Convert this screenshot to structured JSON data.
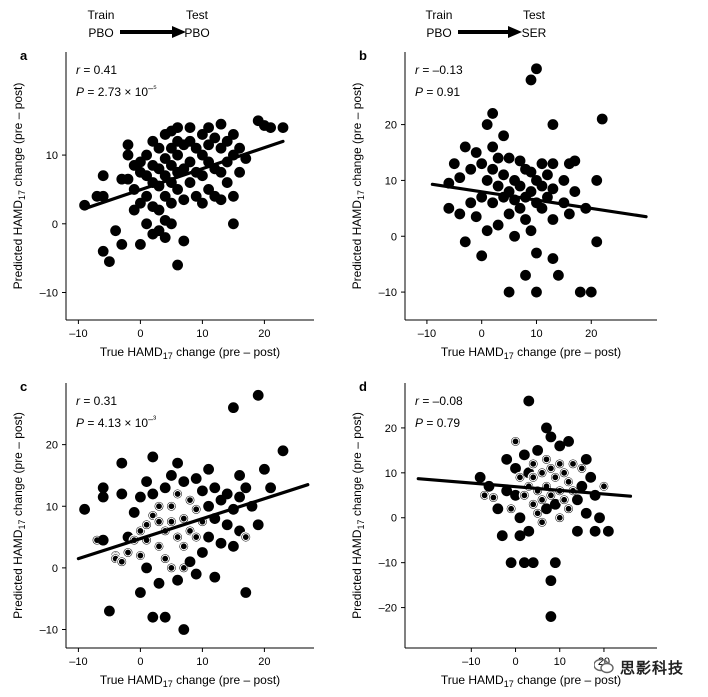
{
  "header": {
    "left": {
      "train_label": "Train",
      "train_value": "PBO",
      "test_label": "Test",
      "test_value": "PBO"
    },
    "right": {
      "train_label": "Train",
      "train_value": "PBO",
      "test_label": "Test",
      "test_value": "SER"
    }
  },
  "watermark": "思影科技",
  "chart_data": [
    {
      "id": "a",
      "type": "scatter",
      "title": "",
      "xlabel": "True HAMD17 change (pre – post)",
      "ylabel": "Predicted HAMD17 change (pre – post)",
      "xlim": [
        -12,
        28
      ],
      "ylim": [
        -14,
        25
      ],
      "xticks": [
        -10,
        0,
        10,
        20
      ],
      "yticks": [
        -10,
        0,
        10
      ],
      "stats": {
        "r": "r = 0.41",
        "p": "P = 2.73 × 10⁻⁵"
      },
      "regression": [
        [
          -9,
          2.2
        ],
        [
          23,
          12
        ]
      ],
      "marker": "filled",
      "points": [
        [
          -9,
          2.7
        ],
        [
          -7,
          4
        ],
        [
          -6,
          4
        ],
        [
          -6,
          7
        ],
        [
          -6,
          -4
        ],
        [
          -5,
          -5.5
        ],
        [
          -4,
          -1
        ],
        [
          -3,
          -3
        ],
        [
          -3,
          6.5
        ],
        [
          -2,
          11.5
        ],
        [
          -2,
          10
        ],
        [
          -2,
          6.5
        ],
        [
          -1,
          2
        ],
        [
          -1,
          8.5
        ],
        [
          -1,
          5
        ],
        [
          0,
          7.5
        ],
        [
          0,
          9
        ],
        [
          0,
          3
        ],
        [
          0,
          -3
        ],
        [
          1,
          10
        ],
        [
          1,
          7
        ],
        [
          1,
          4
        ],
        [
          1,
          0
        ],
        [
          2,
          12
        ],
        [
          2,
          8.5
        ],
        [
          2,
          6
        ],
        [
          2,
          2.5
        ],
        [
          2,
          -1.5
        ],
        [
          3,
          11
        ],
        [
          3,
          8
        ],
        [
          3,
          5.5
        ],
        [
          3,
          2
        ],
        [
          3,
          -1
        ],
        [
          4,
          13
        ],
        [
          4,
          9.5
        ],
        [
          4,
          7
        ],
        [
          4,
          4
        ],
        [
          4,
          0.5
        ],
        [
          4,
          -2
        ],
        [
          5,
          13.5
        ],
        [
          5,
          11
        ],
        [
          5,
          8.5
        ],
        [
          5,
          6
        ],
        [
          5,
          3
        ],
        [
          5,
          0
        ],
        [
          6,
          14
        ],
        [
          6,
          12
        ],
        [
          6,
          10
        ],
        [
          6,
          7.5
        ],
        [
          6,
          5
        ],
        [
          6,
          -6
        ],
        [
          7,
          11.5
        ],
        [
          7,
          8
        ],
        [
          7,
          3.5
        ],
        [
          7,
          -2.5
        ],
        [
          8,
          14
        ],
        [
          8,
          12
        ],
        [
          8,
          9
        ],
        [
          8,
          6
        ],
        [
          9,
          11
        ],
        [
          9,
          7.5
        ],
        [
          9,
          4
        ],
        [
          10,
          13
        ],
        [
          10,
          10
        ],
        [
          10,
          7
        ],
        [
          10,
          3
        ],
        [
          11,
          14
        ],
        [
          11,
          11.5
        ],
        [
          11,
          9
        ],
        [
          11,
          5
        ],
        [
          12,
          12.5
        ],
        [
          12,
          8
        ],
        [
          12,
          4
        ],
        [
          13,
          14.5
        ],
        [
          13,
          11
        ],
        [
          13,
          7.5
        ],
        [
          13,
          3.5
        ],
        [
          14,
          12
        ],
        [
          14,
          9
        ],
        [
          14,
          6
        ],
        [
          15,
          13
        ],
        [
          15,
          10
        ],
        [
          15,
          4
        ],
        [
          15,
          0
        ],
        [
          16,
          11
        ],
        [
          16,
          7.5
        ],
        [
          17,
          9.5
        ],
        [
          19,
          15
        ],
        [
          20,
          14.3
        ],
        [
          21,
          14
        ],
        [
          23,
          14
        ]
      ]
    },
    {
      "id": "b",
      "type": "scatter",
      "title": "",
      "xlabel": "True HAMD17 change (pre – post)",
      "ylabel": "Predicted HAMD17 change (pre – post)",
      "xlim": [
        -14,
        32
      ],
      "ylim": [
        -15,
        33
      ],
      "xticks": [
        -10,
        0,
        10,
        20
      ],
      "yticks": [
        -10,
        0,
        10,
        20
      ],
      "stats": {
        "r": "r = –0.13",
        "p": "P = 0.91"
      },
      "regression": [
        [
          -9,
          9.3
        ],
        [
          30,
          3.5
        ]
      ],
      "marker": "filled",
      "points": [
        [
          -6,
          5
        ],
        [
          -6,
          9.5
        ],
        [
          -5,
          13
        ],
        [
          -4,
          4
        ],
        [
          -4,
          10.5
        ],
        [
          -3,
          16
        ],
        [
          -3,
          -1
        ],
        [
          -2,
          12
        ],
        [
          -2,
          6
        ],
        [
          -1,
          15
        ],
        [
          -1,
          3.5
        ],
        [
          0,
          13
        ],
        [
          0,
          7
        ],
        [
          0,
          -3.5
        ],
        [
          1,
          20
        ],
        [
          1,
          10
        ],
        [
          1,
          1
        ],
        [
          2,
          22
        ],
        [
          2,
          16
        ],
        [
          2,
          12
        ],
        [
          2,
          6
        ],
        [
          3,
          14
        ],
        [
          3,
          9
        ],
        [
          3,
          2
        ],
        [
          4,
          18
        ],
        [
          4,
          11
        ],
        [
          4,
          7
        ],
        [
          5,
          14
        ],
        [
          5,
          8
        ],
        [
          5,
          4
        ],
        [
          5,
          -10
        ],
        [
          6,
          10
        ],
        [
          6,
          6.5
        ],
        [
          6,
          0
        ],
        [
          7,
          13.5
        ],
        [
          7,
          9
        ],
        [
          7,
          5
        ],
        [
          8,
          12
        ],
        [
          8,
          7
        ],
        [
          8,
          3
        ],
        [
          8,
          -7
        ],
        [
          9,
          28
        ],
        [
          9,
          11.5
        ],
        [
          9,
          8
        ],
        [
          9,
          1
        ],
        [
          10,
          30
        ],
        [
          10,
          10
        ],
        [
          10,
          6
        ],
        [
          10,
          -3
        ],
        [
          10,
          -10
        ],
        [
          11,
          13
        ],
        [
          11,
          9
        ],
        [
          11,
          5
        ],
        [
          12,
          11
        ],
        [
          12,
          7
        ],
        [
          13,
          20
        ],
        [
          13,
          13
        ],
        [
          13,
          8.5
        ],
        [
          13,
          3
        ],
        [
          13,
          -4
        ],
        [
          14,
          -7
        ],
        [
          15,
          10
        ],
        [
          15,
          6
        ],
        [
          16,
          13
        ],
        [
          16,
          4
        ],
        [
          17,
          13.5
        ],
        [
          17,
          8
        ],
        [
          18,
          -10
        ],
        [
          19,
          5
        ],
        [
          20,
          -10
        ],
        [
          21,
          10
        ],
        [
          21,
          -1
        ],
        [
          22,
          21
        ]
      ]
    },
    {
      "id": "c",
      "type": "scatter",
      "title": "",
      "xlabel": "True HAMD17 change (pre – post)",
      "ylabel": "Predicted HAMD17 change (pre – post)",
      "xlim": [
        -12,
        28
      ],
      "ylim": [
        -13,
        30
      ],
      "xticks": [
        -10,
        0,
        10,
        20
      ],
      "yticks": [
        -10,
        0,
        10,
        20
      ],
      "stats": {
        "r": "r = 0.31",
        "p": "P = 4.13 × 10⁻³"
      },
      "regression": [
        [
          -10,
          1.5
        ],
        [
          27,
          13.5
        ]
      ],
      "marker": "mixed",
      "points": [
        [
          -9,
          9.5,
          1
        ],
        [
          -7,
          4.5,
          0
        ],
        [
          -6,
          4.5,
          1
        ],
        [
          -6,
          11.5,
          1
        ],
        [
          -6,
          13,
          1
        ],
        [
          -5,
          -7,
          1
        ],
        [
          -4,
          2,
          0
        ],
        [
          -4,
          1.5,
          0
        ],
        [
          -3,
          1,
          0
        ],
        [
          -3,
          12,
          1
        ],
        [
          -3,
          17,
          1
        ],
        [
          -2,
          2.5,
          0
        ],
        [
          -2,
          5,
          1
        ],
        [
          -1,
          9,
          1
        ],
        [
          -1,
          4.5,
          0
        ],
        [
          0,
          6,
          0
        ],
        [
          0,
          2,
          0
        ],
        [
          0,
          -4,
          1
        ],
        [
          0,
          11.5,
          1
        ],
        [
          1,
          7,
          0
        ],
        [
          1,
          4.5,
          0
        ],
        [
          1,
          0,
          1
        ],
        [
          1,
          14,
          1
        ],
        [
          2,
          18,
          1
        ],
        [
          2,
          12,
          1
        ],
        [
          2,
          -8,
          1
        ],
        [
          2,
          8.5,
          0
        ],
        [
          3,
          10,
          0
        ],
        [
          3,
          7.5,
          0
        ],
        [
          3,
          3.5,
          0
        ],
        [
          3,
          -2.5,
          1
        ],
        [
          4,
          13,
          1
        ],
        [
          4,
          6,
          0
        ],
        [
          4,
          1.5,
          0
        ],
        [
          4,
          -8,
          1
        ],
        [
          5,
          15,
          1
        ],
        [
          5,
          10,
          0
        ],
        [
          5,
          7.5,
          0
        ],
        [
          5,
          0,
          0
        ],
        [
          6,
          17,
          1
        ],
        [
          6,
          12,
          0
        ],
        [
          6,
          5,
          0
        ],
        [
          6,
          -2,
          1
        ],
        [
          7,
          14,
          1
        ],
        [
          7,
          8,
          0
        ],
        [
          7,
          3.5,
          0
        ],
        [
          7,
          0,
          0
        ],
        [
          7,
          -10,
          1
        ],
        [
          8,
          11,
          0
        ],
        [
          8,
          6,
          0
        ],
        [
          8,
          1,
          1
        ],
        [
          9,
          14.5,
          1
        ],
        [
          9,
          9.5,
          0
        ],
        [
          9,
          5,
          0
        ],
        [
          9,
          -1,
          1
        ],
        [
          10,
          12.5,
          1
        ],
        [
          10,
          7.5,
          0
        ],
        [
          10,
          2.5,
          1
        ],
        [
          11,
          16,
          1
        ],
        [
          11,
          10,
          1
        ],
        [
          11,
          5,
          1
        ],
        [
          12,
          13,
          1
        ],
        [
          12,
          8,
          1
        ],
        [
          12,
          -1.5,
          1
        ],
        [
          13,
          11,
          1
        ],
        [
          13,
          4,
          1
        ],
        [
          14,
          12,
          1
        ],
        [
          14,
          7,
          1
        ],
        [
          15,
          26,
          1
        ],
        [
          15,
          9.5,
          1
        ],
        [
          15,
          3.5,
          1
        ],
        [
          16,
          15,
          1
        ],
        [
          16,
          11.5,
          1
        ],
        [
          16,
          6,
          1
        ],
        [
          17,
          13,
          1
        ],
        [
          17,
          5,
          0
        ],
        [
          17,
          -4,
          1
        ],
        [
          18,
          10,
          1
        ],
        [
          19,
          28,
          1
        ],
        [
          19,
          7,
          1
        ],
        [
          20,
          16,
          1
        ],
        [
          21,
          13,
          1
        ],
        [
          23,
          19,
          1
        ]
      ]
    },
    {
      "id": "d",
      "type": "scatter",
      "title": "",
      "xlabel": "True HAMD17 change (pre – post)",
      "ylabel": "Predicted HAMD17 change (pre – post)",
      "xlim": [
        -25,
        32
      ],
      "ylim": [
        -29,
        30
      ],
      "xticks": [
        -10,
        0,
        10,
        20
      ],
      "yticks": [
        -20,
        -10,
        0,
        10,
        20
      ],
      "stats": {
        "r": "r = –0.08",
        "p": "P = 0.79"
      },
      "regression": [
        [
          -22,
          8.7
        ],
        [
          26,
          4.8
        ]
      ],
      "marker": "mixed",
      "points": [
        [
          -8,
          9,
          1
        ],
        [
          -7,
          5,
          0
        ],
        [
          -6,
          7,
          1
        ],
        [
          -5,
          4.5,
          0
        ],
        [
          -4,
          2,
          1
        ],
        [
          -3,
          -4,
          1
        ],
        [
          -2,
          13,
          1
        ],
        [
          -2,
          6,
          1
        ],
        [
          -1,
          -10,
          1
        ],
        [
          -1,
          2,
          0
        ],
        [
          0,
          17,
          0
        ],
        [
          0,
          11,
          1
        ],
        [
          0,
          5,
          1
        ],
        [
          1,
          9,
          0
        ],
        [
          1,
          0,
          1
        ],
        [
          1,
          -4,
          1
        ],
        [
          2,
          14,
          1
        ],
        [
          2,
          5,
          0
        ],
        [
          2,
          -10,
          1
        ],
        [
          3,
          10,
          1
        ],
        [
          3,
          26,
          1
        ],
        [
          3,
          7,
          0
        ],
        [
          3,
          -3,
          1
        ],
        [
          4,
          12,
          0
        ],
        [
          4,
          9,
          0
        ],
        [
          4,
          3,
          0
        ],
        [
          4,
          -10,
          1
        ],
        [
          5,
          15,
          1
        ],
        [
          5,
          6,
          0
        ],
        [
          5,
          1,
          0
        ],
        [
          6,
          10,
          0
        ],
        [
          6,
          4,
          0
        ],
        [
          6,
          -1,
          0
        ],
        [
          7,
          20,
          1
        ],
        [
          7,
          13,
          0
        ],
        [
          7,
          7,
          0
        ],
        [
          7,
          2,
          1
        ],
        [
          8,
          18,
          1
        ],
        [
          8,
          11,
          0
        ],
        [
          8,
          5,
          0
        ],
        [
          8,
          -14,
          1
        ],
        [
          8,
          -22,
          1
        ],
        [
          9,
          9,
          0
        ],
        [
          9,
          3,
          1
        ],
        [
          9,
          -10,
          1
        ],
        [
          10,
          16,
          1
        ],
        [
          10,
          12,
          0
        ],
        [
          10,
          6,
          0
        ],
        [
          10,
          0,
          0
        ],
        [
          11,
          10,
          0
        ],
        [
          11,
          4,
          0
        ],
        [
          12,
          17,
          1
        ],
        [
          12,
          8,
          0
        ],
        [
          12,
          2,
          0
        ],
        [
          13,
          12,
          0
        ],
        [
          13,
          6,
          0
        ],
        [
          14,
          -3,
          1
        ],
        [
          14,
          4,
          1
        ],
        [
          15,
          11,
          0
        ],
        [
          15,
          7,
          1
        ],
        [
          16,
          13,
          1
        ],
        [
          16,
          1,
          1
        ],
        [
          17,
          9,
          1
        ],
        [
          18,
          -3,
          1
        ],
        [
          18,
          5,
          1
        ],
        [
          19,
          0,
          1
        ],
        [
          20,
          7,
          0
        ],
        [
          21,
          -3,
          1
        ]
      ]
    }
  ]
}
